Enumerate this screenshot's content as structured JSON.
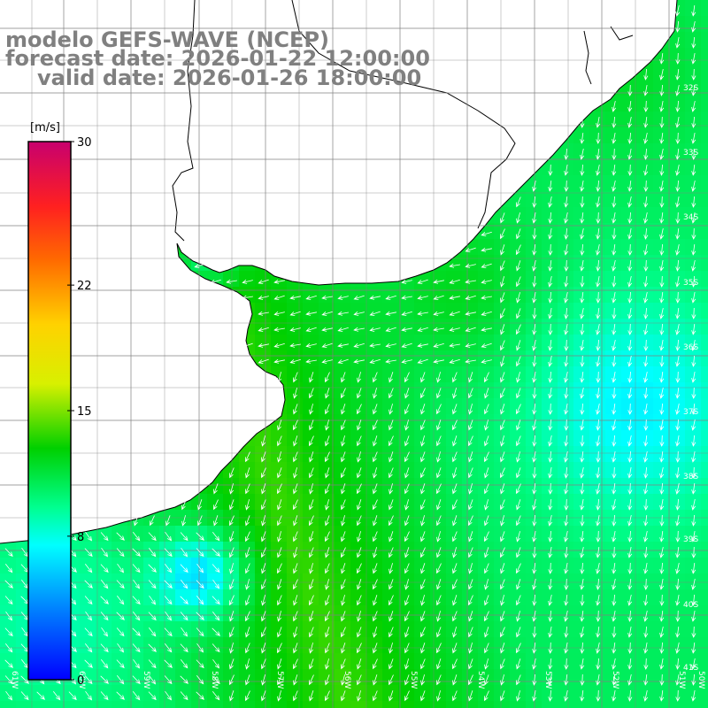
{
  "title": {
    "line1": "modelo GEFS-WAVE (NCEP)",
    "line2": "forecast date: 2026-01-22 12:00:00",
    "line3": "valid date: 2026-01-26 18:00:00"
  },
  "colorbar": {
    "unit": "[m/s]",
    "ticks": [
      "30",
      "22",
      "15",
      "8",
      "0"
    ],
    "tick_values": [
      30,
      22,
      15,
      8,
      0
    ],
    "range": [
      0,
      30
    ]
  },
  "map": {
    "lon_range": [
      -61.5,
      -49
    ],
    "lat_range": [
      -41.3,
      -31.5
    ],
    "lat_labels": [
      "32S",
      "33S",
      "34S",
      "35S",
      "36S",
      "37S",
      "38S",
      "39S",
      "40S",
      "41S"
    ],
    "lon_labels": [
      "61W",
      "60W",
      "59W",
      "58W",
      "57W",
      "56W",
      "55W",
      "54W",
      "53W",
      "52W",
      "51W",
      "50W"
    ],
    "colors": {
      "land": "#ffffff",
      "coastline": "#000000",
      "grid": "#808080",
      "arrow": "#ffffff"
    }
  }
}
